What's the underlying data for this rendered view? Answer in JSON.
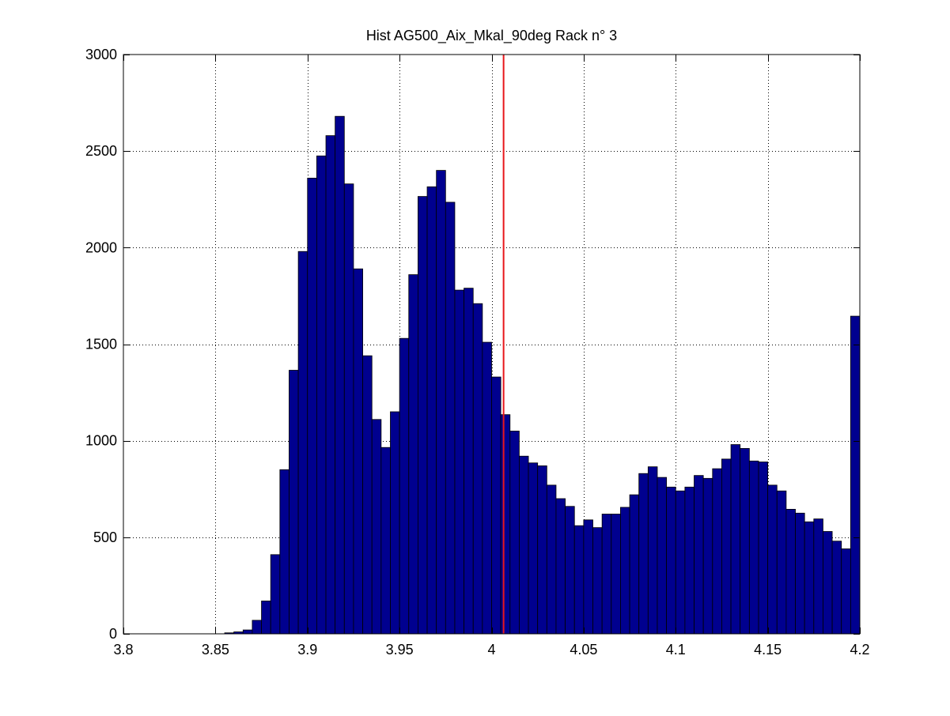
{
  "chart_data": {
    "type": "bar",
    "title": "Hist AG500_Aix_Mkal_90deg Rack n° 3",
    "xlabel": "",
    "ylabel": "",
    "xlim": [
      3.8,
      4.2
    ],
    "ylim": [
      0,
      3000
    ],
    "grid": true,
    "x_ticks": [
      "3.8",
      "3.85",
      "3.9",
      "3.95",
      "4",
      "4.05",
      "4.1",
      "4.15",
      "4.2"
    ],
    "y_ticks": [
      "0",
      "500",
      "1000",
      "1500",
      "2000",
      "2500",
      "3000"
    ],
    "bin_edges_start": 3.855,
    "bin_width": 0.005,
    "bin_centers": [
      3.8575,
      3.8625,
      3.8675,
      3.8725,
      3.8775,
      3.8825,
      3.8875,
      3.8925,
      3.8975,
      3.9025,
      3.9075,
      3.9125,
      3.9175,
      3.9225,
      3.9275,
      3.9325,
      3.9375,
      3.9425,
      3.9475,
      3.9525,
      3.9575,
      3.9625,
      3.9675,
      3.9725,
      3.9775,
      3.9825,
      3.9875,
      3.9925,
      3.9975,
      4.0025,
      4.0075,
      4.0125,
      4.0175,
      4.0225,
      4.0275,
      4.0325,
      4.0375,
      4.0425,
      4.0475,
      4.0525,
      4.0575,
      4.0625,
      4.0675,
      4.0725,
      4.0775,
      4.0825,
      4.0875,
      4.0925,
      4.0975,
      4.1025,
      4.1075,
      4.1125,
      4.1175,
      4.1225,
      4.1275,
      4.1325,
      4.1375,
      4.1425,
      4.1475,
      4.1525,
      4.1575,
      4.1625,
      4.1675,
      4.1725,
      4.1775,
      4.1825,
      4.1875,
      4.1925,
      4.1975,
      4.2025
    ],
    "values": [
      5,
      10,
      20,
      70,
      170,
      410,
      850,
      1365,
      1980,
      2360,
      2475,
      2580,
      2680,
      2330,
      1890,
      1440,
      1110,
      965,
      1150,
      1530,
      1860,
      2265,
      2315,
      2400,
      2235,
      1780,
      1790,
      1710,
      1510,
      1330,
      1135,
      1050,
      920,
      885,
      870,
      770,
      700,
      660,
      560,
      590,
      550,
      620,
      620,
      655,
      720,
      830,
      865,
      810,
      760,
      740,
      760,
      820,
      805,
      855,
      905,
      980,
      960,
      895,
      890,
      770,
      740,
      645,
      625,
      580,
      595,
      530,
      480,
      440,
      1645,
      1645
    ],
    "bar_color": "#00008f",
    "bar_edge_color": "#000000",
    "reference_line": {
      "x": 4.0065,
      "color": "#e8161a"
    }
  }
}
